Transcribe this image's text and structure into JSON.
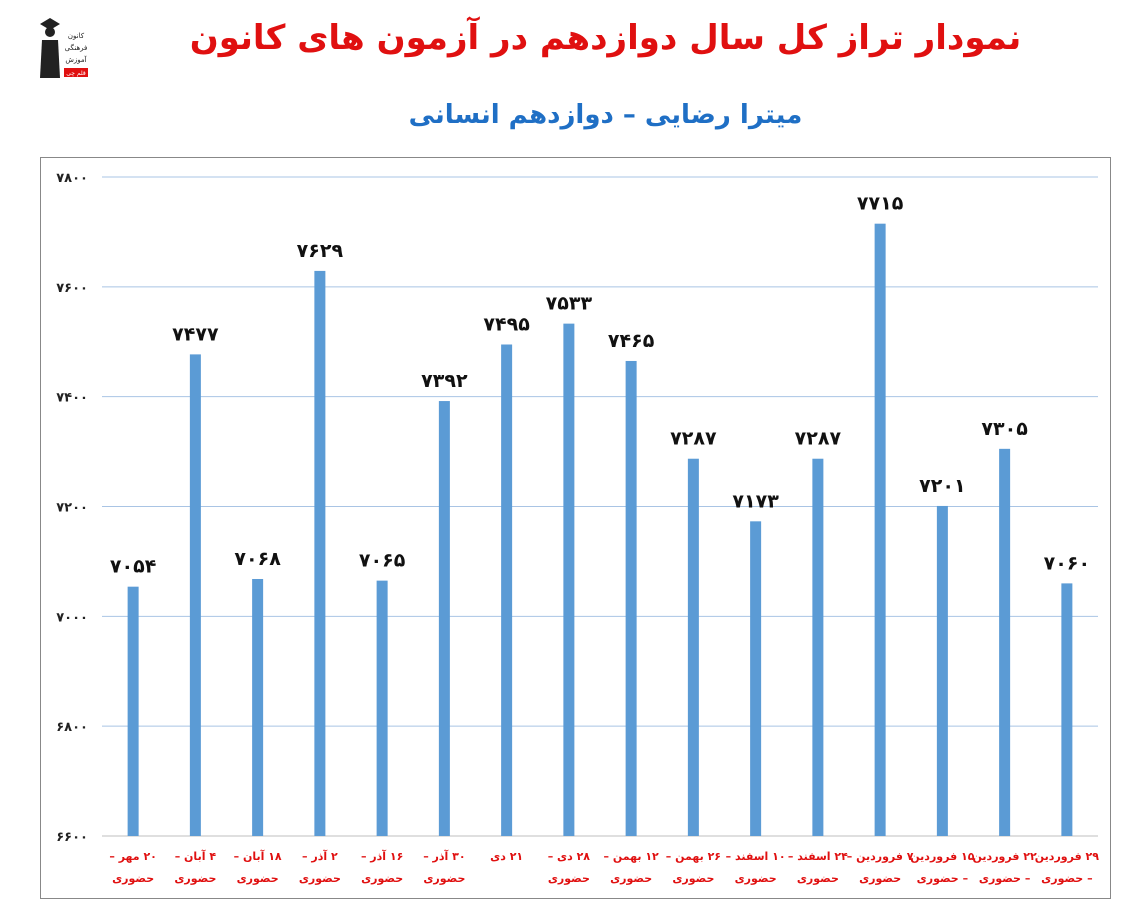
{
  "header": {
    "title": "نمودار تراز کل سال دوازدهم در آزمون های کانون",
    "subtitle": "میترا رضایی – دوازدهم انسانی",
    "logo_lines": [
      "کانون",
      "فرهنگی",
      "آموزش"
    ],
    "logo_badge": "قلم چی"
  },
  "colors": {
    "title": "#e01010",
    "subtitle": "#1f6fc5",
    "bar": "#5b9bd5",
    "category_label": "#e01010",
    "grid": "#a9c4e4"
  },
  "chart_data": {
    "type": "bar",
    "title": "",
    "xlabel": "",
    "ylabel": "",
    "ylim": [
      6600,
      7800
    ],
    "yticks": [
      6600,
      6800,
      7000,
      7200,
      7400,
      7600,
      7800
    ],
    "ytick_labels": [
      "۶۶۰۰",
      "۶۸۰۰",
      "۷۰۰۰",
      "۷۲۰۰",
      "۷۴۰۰",
      "۷۶۰۰",
      "۷۸۰۰"
    ],
    "grid": true,
    "categories": [
      [
        "۲۰ مهر –",
        "حضوری"
      ],
      [
        "۴ آبان –",
        "حضوری"
      ],
      [
        "۱۸ آبان –",
        "حضوری"
      ],
      [
        "۲ آذر –",
        "حضوری"
      ],
      [
        "۱۶ آذر –",
        "حضوری"
      ],
      [
        "۳۰ آذر –",
        "حضوری"
      ],
      [
        "۲۱ دی",
        ""
      ],
      [
        "۲۸ دی –",
        "حضوری"
      ],
      [
        "۱۲ بهمن –",
        "حضوری"
      ],
      [
        "۲۶ بهمن –",
        "حضوری"
      ],
      [
        "۱۰ اسفند –",
        "حضوری"
      ],
      [
        "۲۴ اسفند –",
        "حضوری"
      ],
      [
        "۷ فروردین –",
        "حضوری"
      ],
      [
        "۱۵ فروردین",
        "– حضوری"
      ],
      [
        "۲۲ فروردین",
        "– حضوری"
      ],
      [
        "۲۹ فروردین",
        "– حضوری"
      ]
    ],
    "values": [
      7054,
      7477,
      7068,
      7629,
      7065,
      7392,
      7495,
      7533,
      7465,
      7287,
      7173,
      7287,
      7715,
      7201,
      7305,
      7060
    ],
    "value_labels": [
      "۷۰۵۴",
      "۷۴۷۷",
      "۷۰۶۸",
      "۷۶۲۹",
      "۷۰۶۵",
      "۷۳۹۲",
      "۷۴۹۵",
      "۷۵۳۳",
      "۷۴۶۵",
      "۷۲۸۷",
      "۷۱۷۳",
      "۷۲۸۷",
      "۷۷۱۵",
      "۷۲۰۱",
      "۷۳۰۵",
      "۷۰۶۰"
    ]
  }
}
